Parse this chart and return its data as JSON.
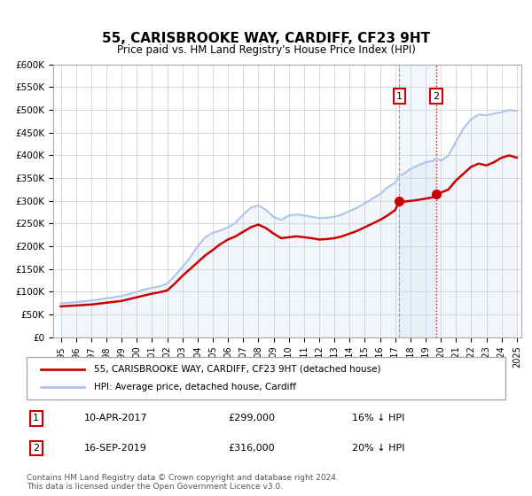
{
  "title": "55, CARISBROOKE WAY, CARDIFF, CF23 9HT",
  "subtitle": "Price paid vs. HM Land Registry's House Price Index (HPI)",
  "legend_label1": "55, CARISBROOKE WAY, CARDIFF, CF23 9HT (detached house)",
  "legend_label2": "HPI: Average price, detached house, Cardiff",
  "sale1_date": "10-APR-2017",
  "sale1_price": 299000,
  "sale1_pct": "16% ↓ HPI",
  "sale2_date": "16-SEP-2019",
  "sale2_price": 316000,
  "sale2_pct": "20% ↓ HPI",
  "footer": "Contains HM Land Registry data © Crown copyright and database right 2024.\nThis data is licensed under the Open Government Licence v3.0.",
  "sale1_year": 2017.27,
  "sale2_year": 2019.71,
  "hpi_color": "#aec6e8",
  "price_color": "#cc0000",
  "marker_color": "#cc0000",
  "shade_color": "#dce9f5",
  "ylim": [
    0,
    600000
  ],
  "yticks": [
    0,
    50000,
    100000,
    150000,
    200000,
    250000,
    300000,
    350000,
    400000,
    450000,
    500000,
    550000,
    600000
  ],
  "hpi_data": [
    [
      1995,
      75000
    ],
    [
      1995.5,
      76000
    ],
    [
      1996,
      77500
    ],
    [
      1996.5,
      79000
    ],
    [
      1997,
      81000
    ],
    [
      1997.5,
      83000
    ],
    [
      1998,
      86000
    ],
    [
      1998.5,
      88000
    ],
    [
      1999,
      91000
    ],
    [
      1999.5,
      95000
    ],
    [
      2000,
      100000
    ],
    [
      2000.5,
      105000
    ],
    [
      2001,
      109000
    ],
    [
      2001.5,
      112000
    ],
    [
      2002,
      118000
    ],
    [
      2002.5,
      135000
    ],
    [
      2003,
      155000
    ],
    [
      2003.5,
      175000
    ],
    [
      2004,
      200000
    ],
    [
      2004.5,
      220000
    ],
    [
      2005,
      230000
    ],
    [
      2005.5,
      235000
    ],
    [
      2006,
      242000
    ],
    [
      2006.5,
      252000
    ],
    [
      2007,
      270000
    ],
    [
      2007.5,
      285000
    ],
    [
      2008,
      290000
    ],
    [
      2008.5,
      280000
    ],
    [
      2009,
      265000
    ],
    [
      2009.5,
      258000
    ],
    [
      2010,
      268000
    ],
    [
      2010.5,
      270000
    ],
    [
      2011,
      268000
    ],
    [
      2011.5,
      265000
    ],
    [
      2012,
      262000
    ],
    [
      2012.5,
      263000
    ],
    [
      2013,
      265000
    ],
    [
      2013.5,
      270000
    ],
    [
      2014,
      278000
    ],
    [
      2014.5,
      285000
    ],
    [
      2015,
      295000
    ],
    [
      2015.5,
      305000
    ],
    [
      2016,
      315000
    ],
    [
      2016.5,
      330000
    ],
    [
      2017,
      340000
    ],
    [
      2017.27,
      356000
    ],
    [
      2017.5,
      358000
    ],
    [
      2018,
      370000
    ],
    [
      2018.5,
      378000
    ],
    [
      2019,
      385000
    ],
    [
      2019.5,
      388000
    ],
    [
      2019.71,
      395000
    ],
    [
      2020,
      388000
    ],
    [
      2020.5,
      400000
    ],
    [
      2021,
      430000
    ],
    [
      2021.5,
      460000
    ],
    [
      2022,
      480000
    ],
    [
      2022.5,
      490000
    ],
    [
      2023,
      488000
    ],
    [
      2023.5,
      492000
    ],
    [
      2024,
      495000
    ],
    [
      2024.5,
      500000
    ],
    [
      2025,
      498000
    ]
  ],
  "price_data": [
    [
      1995,
      68000
    ],
    [
      1995.5,
      69000
    ],
    [
      1996,
      70000
    ],
    [
      1996.5,
      71000
    ],
    [
      1997,
      72000
    ],
    [
      1997.5,
      74000
    ],
    [
      1998,
      76000
    ],
    [
      1998.5,
      78000
    ],
    [
      1999,
      80000
    ],
    [
      1999.5,
      84000
    ],
    [
      2000,
      88000
    ],
    [
      2000.5,
      92000
    ],
    [
      2001,
      96000
    ],
    [
      2001.5,
      99000
    ],
    [
      2002,
      103000
    ],
    [
      2002.5,
      118000
    ],
    [
      2003,
      135000
    ],
    [
      2003.5,
      150000
    ],
    [
      2004,
      165000
    ],
    [
      2004.5,
      180000
    ],
    [
      2005,
      192000
    ],
    [
      2005.5,
      205000
    ],
    [
      2006,
      215000
    ],
    [
      2006.5,
      222000
    ],
    [
      2007,
      232000
    ],
    [
      2007.5,
      242000
    ],
    [
      2008,
      248000
    ],
    [
      2008.5,
      240000
    ],
    [
      2009,
      228000
    ],
    [
      2009.5,
      218000
    ],
    [
      2010,
      220000
    ],
    [
      2010.5,
      222000
    ],
    [
      2011,
      220000
    ],
    [
      2011.5,
      218000
    ],
    [
      2012,
      215000
    ],
    [
      2012.5,
      216000
    ],
    [
      2013,
      218000
    ],
    [
      2013.5,
      222000
    ],
    [
      2014,
      228000
    ],
    [
      2014.5,
      234000
    ],
    [
      2015,
      242000
    ],
    [
      2015.5,
      250000
    ],
    [
      2016,
      258000
    ],
    [
      2016.5,
      268000
    ],
    [
      2017,
      280000
    ],
    [
      2017.27,
      299000
    ],
    [
      2017.5,
      298000
    ],
    [
      2018,
      300000
    ],
    [
      2018.5,
      302000
    ],
    [
      2019,
      305000
    ],
    [
      2019.5,
      308000
    ],
    [
      2019.71,
      316000
    ],
    [
      2020,
      318000
    ],
    [
      2020.5,
      325000
    ],
    [
      2021,
      345000
    ],
    [
      2021.5,
      360000
    ],
    [
      2022,
      375000
    ],
    [
      2022.5,
      382000
    ],
    [
      2023,
      378000
    ],
    [
      2023.5,
      385000
    ],
    [
      2024,
      395000
    ],
    [
      2024.5,
      400000
    ],
    [
      2025,
      395000
    ]
  ]
}
